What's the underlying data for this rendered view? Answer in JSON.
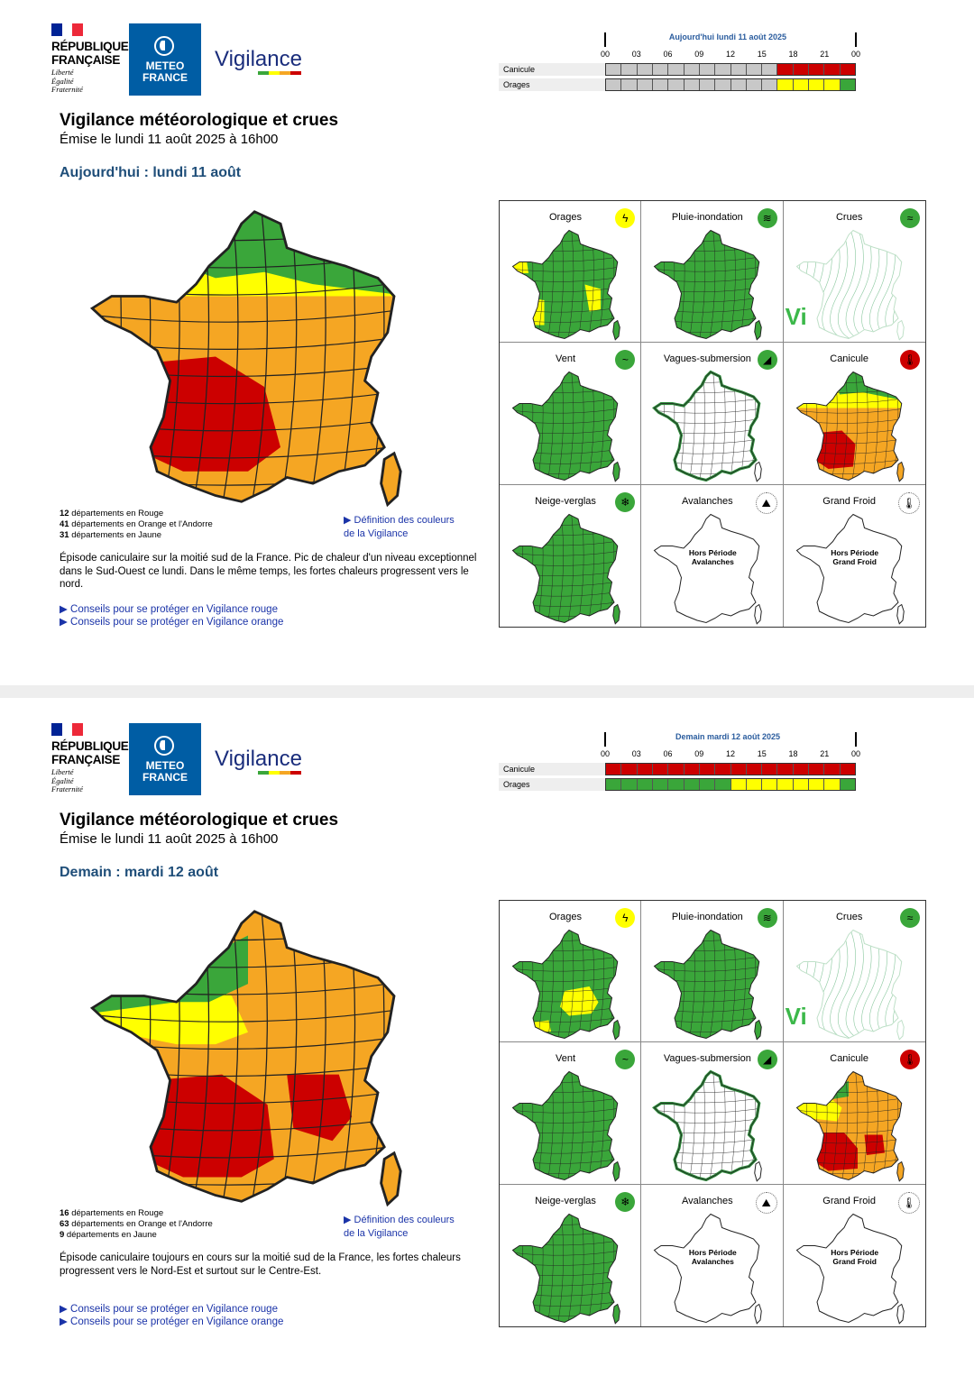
{
  "colors": {
    "red": "#cc0000",
    "orange": "#f5a623",
    "yellow": "#ffff00",
    "green": "#3aa63a",
    "gray": "#c8c8c8"
  },
  "header": {
    "republique": [
      "RÉPUBLIQUE",
      "FRANÇAISE"
    ],
    "motto": [
      "Liberté",
      "Égalité",
      "Fraternité"
    ],
    "meteo": [
      "METEO",
      "FRANCE"
    ],
    "vigilance": "Vigilance"
  },
  "hours": [
    "00",
    "03",
    "06",
    "09",
    "12",
    "15",
    "18",
    "21",
    "00"
  ],
  "bulletins": [
    {
      "timeline_title": "Aujourd'hui lundi 11 août 2025",
      "rows": [
        {
          "label": "Canicule",
          "cells": [
            "gray",
            "gray",
            "gray",
            "gray",
            "gray",
            "gray",
            "gray",
            "gray",
            "gray",
            "gray",
            "gray",
            "gray",
            "gray",
            "gray",
            "gray",
            "gray",
            "gray",
            "gray",
            "gray",
            "gray",
            "gray",
            "gray",
            "gray",
            "gray",
            "gray",
            "gray",
            "gray",
            "gray",
            "gray",
            "gray",
            "gray",
            "gray",
            "gray",
            "gray",
            "gray",
            "gray",
            "gray",
            "gray",
            "gray",
            "gray",
            "gray",
            "gray",
            "gray",
            "gray",
            "gray",
            "gray",
            "gray",
            "gray",
            "gray",
            "gray",
            "gray",
            "gray",
            "gray",
            "gray",
            "red",
            "red",
            "red",
            "red",
            "red",
            "red",
            "red",
            "red",
            "red",
            "red",
            "red",
            "red",
            "red",
            "red",
            "red",
            "red",
            "red",
            "red",
            "red",
            "red",
            "red",
            "red",
            "red",
            "red",
            "red",
            "red"
          ]
        },
        {
          "label": "Orages",
          "cells": [
            "gray",
            "gray",
            "gray",
            "gray",
            "gray",
            "gray",
            "gray",
            "gray",
            "gray",
            "gray",
            "gray",
            "gray",
            "gray",
            "gray",
            "gray",
            "gray",
            "gray",
            "gray",
            "gray",
            "gray",
            "gray",
            "gray",
            "gray",
            "gray",
            "gray",
            "gray",
            "gray",
            "gray",
            "gray",
            "gray",
            "gray",
            "gray",
            "gray",
            "gray",
            "gray",
            "gray",
            "gray",
            "gray",
            "gray",
            "gray",
            "gray",
            "gray",
            "gray",
            "gray",
            "gray",
            "gray",
            "gray",
            "gray",
            "gray",
            "gray",
            "gray",
            "gray",
            "gray",
            "gray",
            "yellow",
            "yellow",
            "yellow",
            "yellow",
            "yellow",
            "yellow",
            "yellow",
            "yellow",
            "yellow",
            "yellow",
            "yellow",
            "yellow",
            "yellow",
            "yellow",
            "yellow",
            "yellow",
            "yellow",
            "yellow",
            "green",
            "green",
            "green",
            "green",
            "green",
            "green",
            "green",
            "green"
          ]
        }
      ],
      "title": "Vigilance météorologique et crues",
      "emise": "Émise le lundi 11 août 2025 à 16h00",
      "day": "Aujourd'hui : lundi 11 août",
      "counts": [
        {
          "n": "12",
          "text": " départements en Rouge"
        },
        {
          "n": "41",
          "text": " départements en Orange et l'Andorre"
        },
        {
          "n": "31",
          "text": " départements en Jaune"
        }
      ],
      "def_link": [
        "▶ Définition des couleurs",
        "de la Vigilance"
      ],
      "episode": "Épisode caniculaire sur la moitié sud de la France. Pic de chaleur d'un niveau exceptionnel dans le Sud-Ouest ce lundi. Dans le même temps, les fortes chaleurs progressent vers le nord.",
      "conseils": [
        "▶ Conseils pour se protéger en Vigilance rouge",
        "▶ Conseils pour se protéger en Vigilance orange"
      ],
      "bigmap": "today",
      "cells": [
        {
          "title": "Orages",
          "icon": "storm-icon",
          "icon_color": "#ffff00",
          "glyph": "ϟ",
          "map": "orages1"
        },
        {
          "title": "Pluie-inondation",
          "icon": "rain-flood-icon",
          "icon_color": "#3aa63a",
          "glyph": "≋",
          "map": "green"
        },
        {
          "title": "Crues",
          "icon": "flood-icon",
          "icon_color": "#3aa63a",
          "glyph": "≈",
          "map": "crues"
        },
        {
          "title": "Vent",
          "icon": "wind-icon",
          "icon_color": "#3aa63a",
          "glyph": "~",
          "map": "green"
        },
        {
          "title": "Vagues-submersion",
          "icon": "wave-icon",
          "icon_color": "#3aa63a",
          "glyph": "◢",
          "map": "vagues"
        },
        {
          "title": "Canicule",
          "icon": "thermometer-hot-icon",
          "icon_color": "#cc0000",
          "glyph": "🌡",
          "map": "canicule1"
        },
        {
          "title": "Neige-verglas",
          "icon": "snow-icon",
          "icon_color": "#3aa63a",
          "glyph": "❄",
          "map": "green"
        },
        {
          "title": "Avalanches",
          "icon": "avalanche-icon",
          "icon_color": "#ffffff",
          "glyph": "⛰",
          "map": "white",
          "hors": [
            "Hors Période",
            "Avalanches"
          ]
        },
        {
          "title": "Grand Froid",
          "icon": "thermometer-cold-icon",
          "icon_color": "#ffffff",
          "glyph": "🌡",
          "map": "white",
          "hors": [
            "Hors Période",
            "Grand Froid"
          ]
        }
      ]
    },
    {
      "timeline_title": "Demain mardi 12 août 2025",
      "rows": [
        {
          "label": "Canicule",
          "cells": [
            "red",
            "red",
            "red",
            "red",
            "red",
            "red",
            "red",
            "red",
            "red",
            "red",
            "red",
            "red",
            "red",
            "red",
            "red",
            "red",
            "red",
            "red",
            "red",
            "red",
            "red",
            "red",
            "red",
            "red",
            "red",
            "red",
            "red",
            "red",
            "red",
            "red",
            "red",
            "red",
            "red",
            "red",
            "red",
            "red",
            "red",
            "red",
            "red",
            "red",
            "red",
            "red",
            "red",
            "red",
            "red",
            "red",
            "red",
            "red",
            "red",
            "red",
            "red",
            "red",
            "red",
            "red",
            "red",
            "red",
            "red",
            "red",
            "red",
            "red",
            "red",
            "red",
            "red",
            "red",
            "red",
            "red",
            "red",
            "red",
            "red",
            "red",
            "red",
            "red",
            "red",
            "red",
            "red",
            "red",
            "red",
            "red",
            "red",
            "red"
          ]
        },
        {
          "label": "Orages",
          "cells": [
            "green",
            "green",
            "green",
            "green",
            "green",
            "green",
            "green",
            "green",
            "green",
            "green",
            "green",
            "green",
            "green",
            "green",
            "green",
            "green",
            "green",
            "green",
            "green",
            "green",
            "green",
            "green",
            "green",
            "green",
            "green",
            "green",
            "green",
            "green",
            "green",
            "green",
            "green",
            "green",
            "green",
            "green",
            "green",
            "green",
            "green",
            "green",
            "green",
            "green",
            "yellow",
            "yellow",
            "yellow",
            "yellow",
            "yellow",
            "yellow",
            "yellow",
            "yellow",
            "yellow",
            "yellow",
            "yellow",
            "yellow",
            "yellow",
            "yellow",
            "yellow",
            "yellow",
            "yellow",
            "yellow",
            "yellow",
            "yellow",
            "yellow",
            "yellow",
            "yellow",
            "yellow",
            "yellow",
            "yellow",
            "yellow",
            "yellow",
            "yellow",
            "yellow",
            "yellow",
            "yellow",
            "green",
            "green",
            "green",
            "green",
            "green",
            "green",
            "green",
            "green"
          ]
        }
      ],
      "title": "Vigilance météorologique et crues",
      "emise": "Émise le lundi 11 août 2025 à 16h00",
      "day": "Demain : mardi 12 août",
      "counts": [
        {
          "n": "16",
          "text": " départements en Rouge"
        },
        {
          "n": "63",
          "text": " départements en Orange et l'Andorre"
        },
        {
          "n": "9",
          "text": " départements en Jaune"
        }
      ],
      "def_link": [
        "▶ Définition des couleurs",
        "de la Vigilance"
      ],
      "episode": "Épisode caniculaire toujours en cours sur la moitié sud de la France, les fortes chaleurs progressent vers le Nord-Est et surtout sur le Centre-Est.",
      "conseils": [
        "▶ Conseils pour se protéger en Vigilance rouge",
        "▶ Conseils pour se protéger en Vigilance orange"
      ],
      "bigmap": "tomorrow",
      "cells": [
        {
          "title": "Orages",
          "icon": "storm-icon",
          "icon_color": "#ffff00",
          "glyph": "ϟ",
          "map": "orages2"
        },
        {
          "title": "Pluie-inondation",
          "icon": "rain-flood-icon",
          "icon_color": "#3aa63a",
          "glyph": "≋",
          "map": "green"
        },
        {
          "title": "Crues",
          "icon": "flood-icon",
          "icon_color": "#3aa63a",
          "glyph": "≈",
          "map": "crues"
        },
        {
          "title": "Vent",
          "icon": "wind-icon",
          "icon_color": "#3aa63a",
          "glyph": "~",
          "map": "green"
        },
        {
          "title": "Vagues-submersion",
          "icon": "wave-icon",
          "icon_color": "#3aa63a",
          "glyph": "◢",
          "map": "vagues"
        },
        {
          "title": "Canicule",
          "icon": "thermometer-hot-icon",
          "icon_color": "#cc0000",
          "glyph": "🌡",
          "map": "canicule2"
        },
        {
          "title": "Neige-verglas",
          "icon": "snow-icon",
          "icon_color": "#3aa63a",
          "glyph": "❄",
          "map": "green"
        },
        {
          "title": "Avalanches",
          "icon": "avalanche-icon",
          "icon_color": "#ffffff",
          "glyph": "⛰",
          "map": "white",
          "hors": [
            "Hors Période",
            "Avalanches"
          ]
        },
        {
          "title": "Grand Froid",
          "icon": "thermometer-cold-icon",
          "icon_color": "#ffffff",
          "glyph": "🌡",
          "map": "white",
          "hors": [
            "Hors Période",
            "Grand Froid"
          ]
        }
      ]
    }
  ]
}
